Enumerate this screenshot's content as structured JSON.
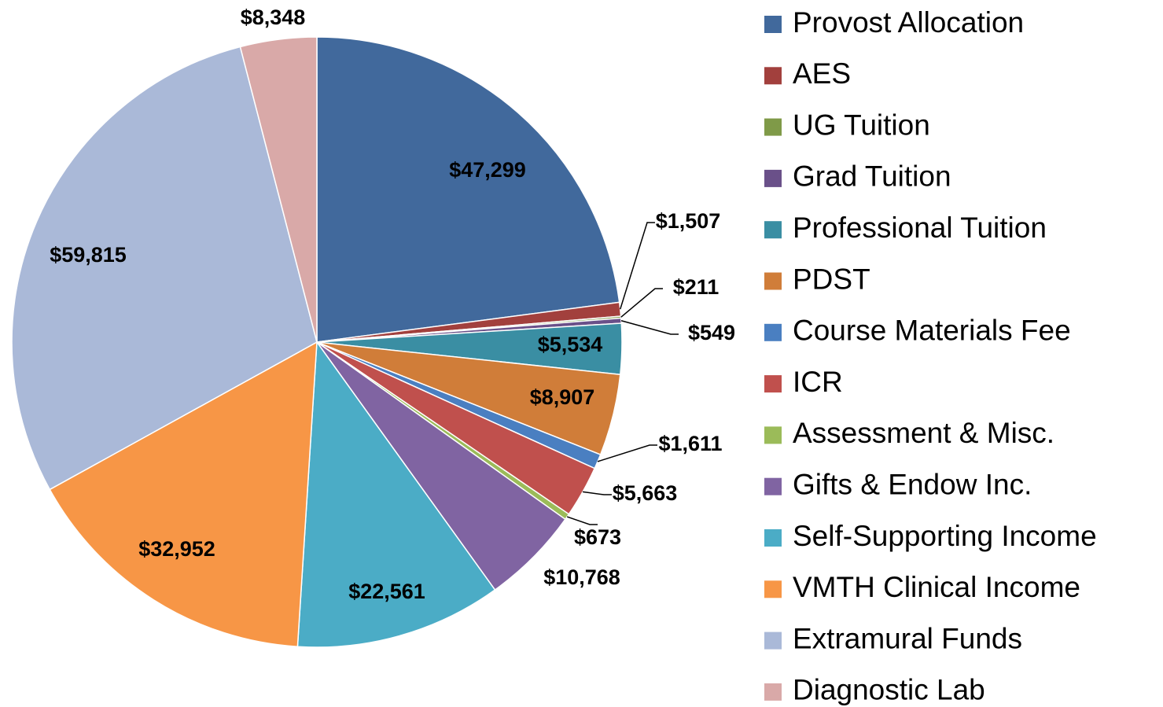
{
  "chart_data": {
    "type": "pie",
    "categories": [
      "Provost Allocation",
      "AES",
      "UG Tuition",
      "Grad Tuition",
      "Professional Tuition",
      "PDST",
      "Course Materials Fee",
      "ICR",
      "Assessment & Misc.",
      "Gifts & Endow Inc.",
      "Self-Supporting Income",
      "VMTH Clinical Income",
      "Extramural Funds",
      "Diagnostic Lab"
    ],
    "values": [
      47299,
      1507,
      211,
      549,
      5534,
      8907,
      1611,
      5663,
      673,
      10768,
      22561,
      32952,
      59815,
      8348
    ],
    "value_labels": [
      "$47,299",
      "$1,507",
      "$211",
      "$549",
      "$5,534",
      "$8,907",
      "$1,611",
      "$5,663",
      "$673",
      "$10,768",
      "$22,561",
      "$32,952",
      "$59,815",
      "$8,348"
    ],
    "colors": [
      "#41699c",
      "#a2403d",
      "#7f9a48",
      "#6a5089",
      "#3a8ea3",
      "#d07d39",
      "#4a7fc1",
      "#c0504d",
      "#9bbb59",
      "#8064a2",
      "#4bacc6",
      "#f79646",
      "#aab9d8",
      "#d9a9a8"
    ],
    "legend": "right"
  }
}
